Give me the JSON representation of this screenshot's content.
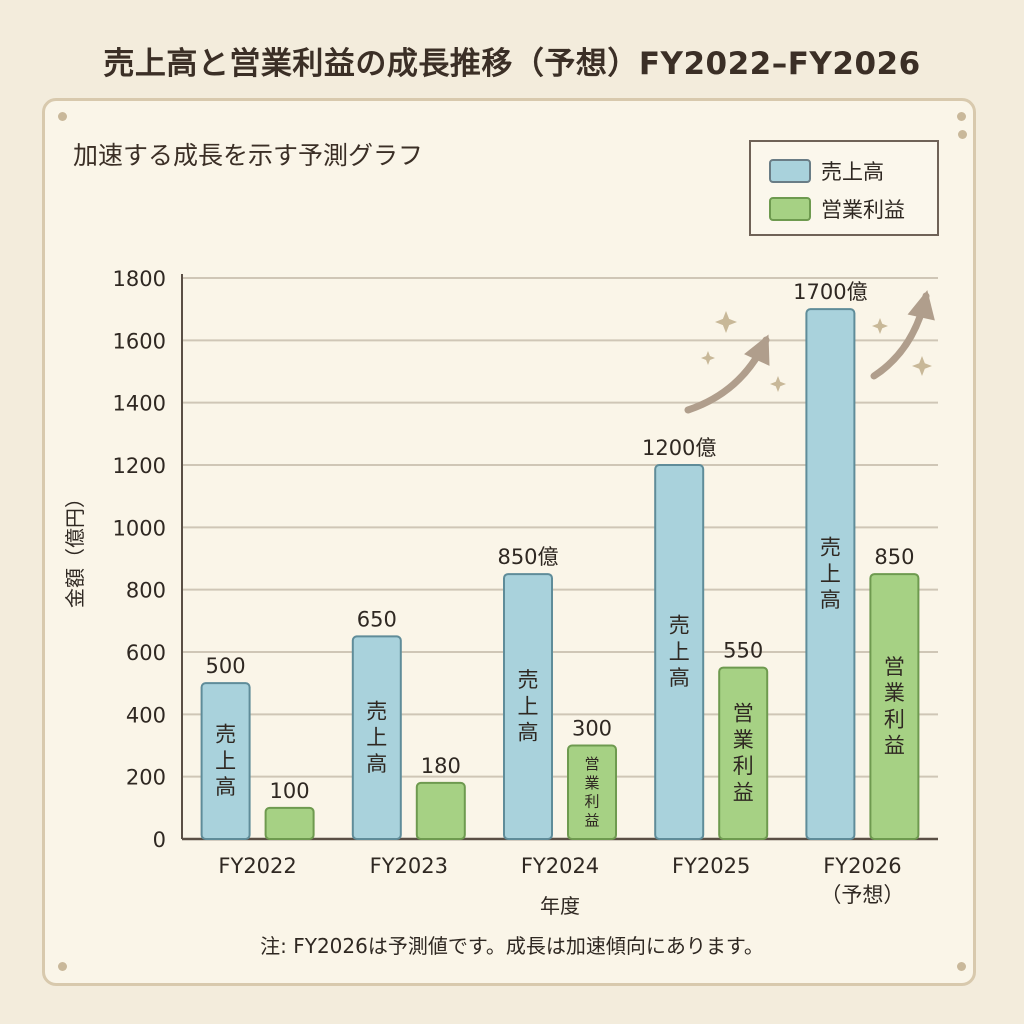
{
  "title": "売上高と営業利益の成長推移（予想）FY2022–FY2026",
  "subtitle": "加速する成長を示す予測グラフ",
  "footnote": "注: FY2026は予測値です。成長は加速傾向にあります。",
  "colors": {
    "revenue": "#a9d2dc",
    "revenue_stroke": "#5f8c99",
    "profit": "#a6d184",
    "profit_stroke": "#6e9a4f",
    "grid": "#cfc6b6",
    "arrow": "#b09e8c",
    "sparkle": "#c8b898"
  },
  "legend": [
    {
      "label": "売上高",
      "color": "#a9d2dc"
    },
    {
      "label": "営業利益",
      "color": "#a6d184"
    }
  ],
  "chart_data": {
    "type": "bar",
    "categories": [
      "FY2022",
      "FY2023",
      "FY2024",
      "FY2025",
      "FY2026"
    ],
    "category_sublabels": [
      "",
      "",
      "",
      "",
      "（予想）"
    ],
    "series": [
      {
        "name": "売上高",
        "values": [
          500,
          650,
          850,
          1200,
          1700
        ],
        "value_labels": [
          "500",
          "650",
          "850億",
          "1200億",
          "1700億"
        ],
        "inbar_label": "売上高"
      },
      {
        "name": "営業利益",
        "values": [
          100,
          180,
          300,
          550,
          850
        ],
        "value_labels": [
          "100",
          "180",
          "300",
          "550",
          "850"
        ],
        "inbar_label": "営業利益"
      }
    ],
    "xlabel": "年度",
    "ylabel": "金額（億円）",
    "ylim": [
      0,
      1800
    ],
    "yticks": [
      0,
      200,
      400,
      600,
      800,
      1000,
      1200,
      1400,
      1600,
      1800
    ],
    "grid": true,
    "legend_position": "top-right"
  }
}
